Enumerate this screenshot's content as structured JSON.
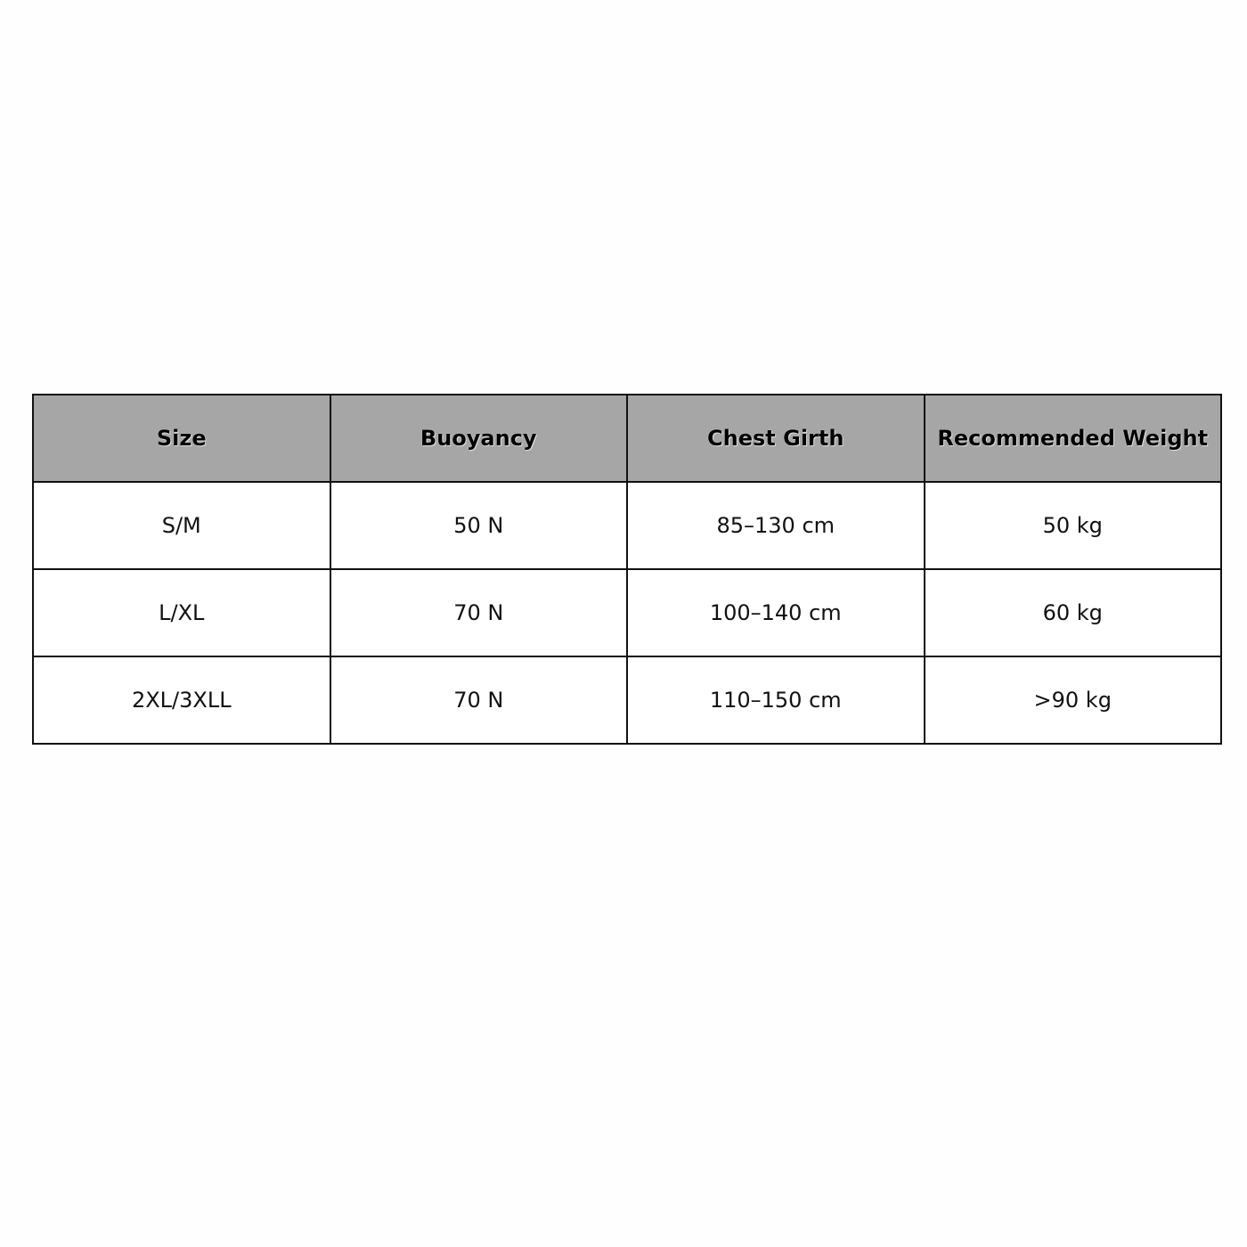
{
  "table": {
    "headers": [
      "Size",
      "Buoyancy",
      "Chest Girth",
      "Recommended Weight"
    ],
    "rows": [
      [
        "S/M",
        "50 N",
        "85–130 cm",
        "50 kg"
      ],
      [
        "L/XL",
        "70 N",
        "100–140 cm",
        "60 kg"
      ],
      [
        "2XL/3XLL",
        "70 N",
        "110–150 cm",
        ">90 kg"
      ]
    ],
    "header_bg": "#a6a6a6"
  }
}
